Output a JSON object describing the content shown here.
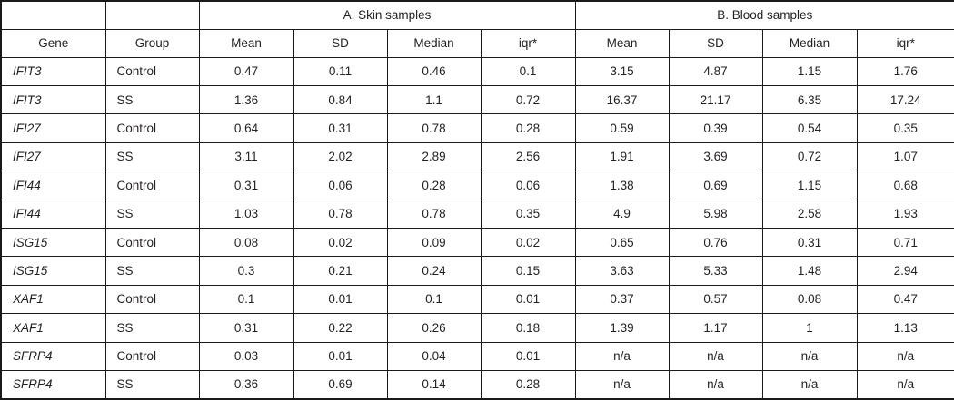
{
  "colors": {
    "text": "#231f20",
    "border": "#1a1a1a",
    "background": "#ffffff"
  },
  "table": {
    "section_headers": {
      "skin": "A. Skin samples",
      "blood": "B. Blood samples"
    },
    "column_headers": {
      "gene": "Gene",
      "group": "Group",
      "skin_mean": "Mean",
      "skin_sd": "SD",
      "skin_median": "Median",
      "skin_iqr": "iqr*",
      "blood_mean": "Mean",
      "blood_sd": "SD",
      "blood_median": "Median",
      "blood_iqr": "iqr*"
    },
    "rows": [
      {
        "gene": "IFIT3",
        "group": "Control",
        "skin": [
          "0.47",
          "0.11",
          "0.46",
          "0.1"
        ],
        "blood": [
          "3.15",
          "4.87",
          "1.15",
          "1.76"
        ]
      },
      {
        "gene": "IFIT3",
        "group": "SS",
        "skin": [
          "1.36",
          "0.84",
          "1.1",
          "0.72"
        ],
        "blood": [
          "16.37",
          "21.17",
          "6.35",
          "17.24"
        ]
      },
      {
        "gene": "IFI27",
        "group": "Control",
        "skin": [
          "0.64",
          "0.31",
          "0.78",
          "0.28"
        ],
        "blood": [
          "0.59",
          "0.39",
          "0.54",
          "0.35"
        ]
      },
      {
        "gene": "IFI27",
        "group": "SS",
        "skin": [
          "3.11",
          "2.02",
          "2.89",
          "2.56"
        ],
        "blood": [
          "1.91",
          "3.69",
          "0.72",
          "1.07"
        ]
      },
      {
        "gene": "IFI44",
        "group": "Control",
        "skin": [
          "0.31",
          "0.06",
          "0.28",
          "0.06"
        ],
        "blood": [
          "1.38",
          "0.69",
          "1.15",
          "0.68"
        ]
      },
      {
        "gene": "IFI44",
        "group": "SS",
        "skin": [
          "1.03",
          "0.78",
          "0.78",
          "0.35"
        ],
        "blood": [
          "4.9",
          "5.98",
          "2.58",
          "1.93"
        ]
      },
      {
        "gene": "ISG15",
        "group": "Control",
        "skin": [
          "0.08",
          "0.02",
          "0.09",
          "0.02"
        ],
        "blood": [
          "0.65",
          "0.76",
          "0.31",
          "0.71"
        ]
      },
      {
        "gene": "ISG15",
        "group": "SS",
        "skin": [
          "0.3",
          "0.21",
          "0.24",
          "0.15"
        ],
        "blood": [
          "3.63",
          "5.33",
          "1.48",
          "2.94"
        ]
      },
      {
        "gene": "XAF1",
        "group": "Control",
        "skin": [
          "0.1",
          "0.01",
          "0.1",
          "0.01"
        ],
        "blood": [
          "0.37",
          "0.57",
          "0.08",
          "0.47"
        ]
      },
      {
        "gene": "XAF1",
        "group": "SS",
        "skin": [
          "0.31",
          "0.22",
          "0.26",
          "0.18"
        ],
        "blood": [
          "1.39",
          "1.17",
          "1",
          "1.13"
        ]
      },
      {
        "gene": "SFRP4",
        "group": "Control",
        "skin": [
          "0.03",
          "0.01",
          "0.04",
          "0.01"
        ],
        "blood": [
          "n/a",
          "n/a",
          "n/a",
          "n/a"
        ]
      },
      {
        "gene": "SFRP4",
        "group": "SS",
        "skin": [
          "0.36",
          "0.69",
          "0.14",
          "0.28"
        ],
        "blood": [
          "n/a",
          "n/a",
          "n/a",
          "n/a"
        ]
      }
    ]
  }
}
